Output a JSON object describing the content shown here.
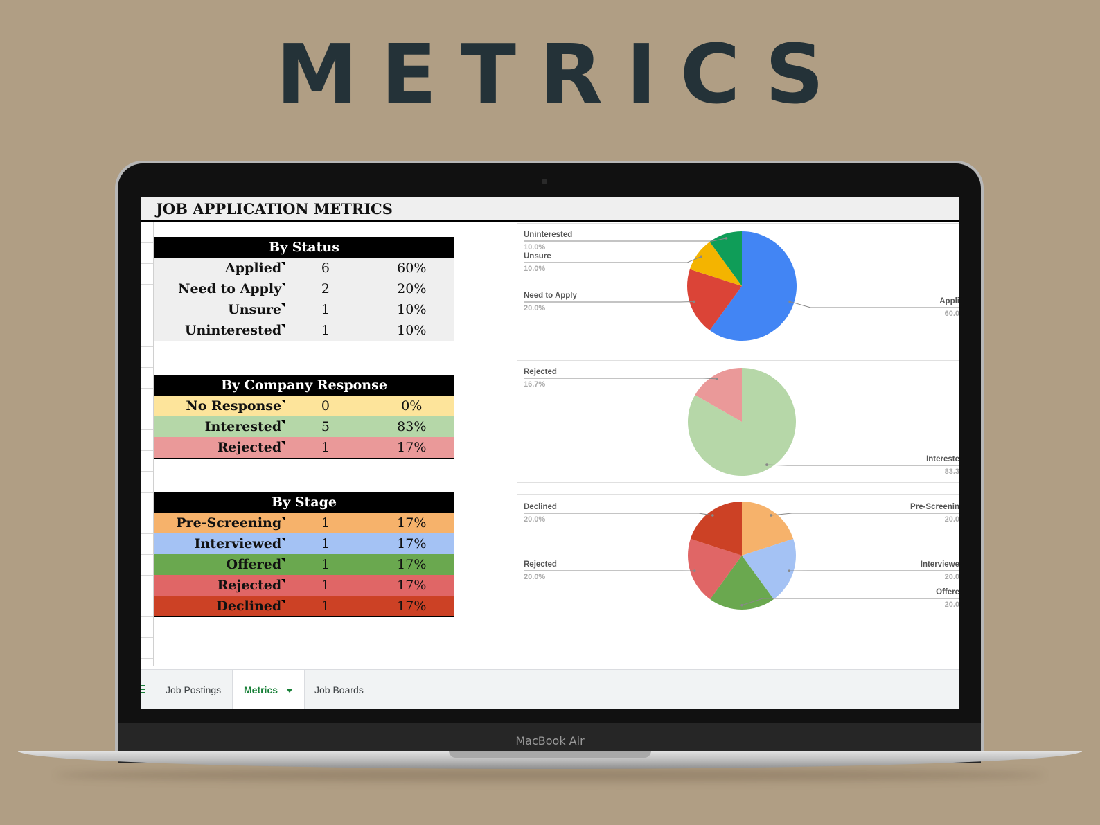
{
  "hero_title": "METRICS",
  "device_label": "MacBook Air",
  "sheet": {
    "title": "JOB APPLICATION METRICS",
    "tables": {
      "status": {
        "title": "By Status",
        "rows": [
          {
            "label": "Applied",
            "count": "6",
            "pct": "60%",
            "bg": "#efefef"
          },
          {
            "label": "Need to Apply",
            "count": "2",
            "pct": "20%",
            "bg": "#efefef"
          },
          {
            "label": "Unsure",
            "count": "1",
            "pct": "10%",
            "bg": "#efefef"
          },
          {
            "label": "Uninterested",
            "count": "1",
            "pct": "10%",
            "bg": "#efefef"
          }
        ]
      },
      "response": {
        "title": "By Company Response",
        "rows": [
          {
            "label": "No Response",
            "count": "0",
            "pct": "0%",
            "bg": "#fde49b"
          },
          {
            "label": "Interested",
            "count": "5",
            "pct": "83%",
            "bg": "#b5d7a8"
          },
          {
            "label": "Rejected",
            "count": "1",
            "pct": "17%",
            "bg": "#ea9999"
          }
        ]
      },
      "stage": {
        "title": "By Stage",
        "rows": [
          {
            "label": "Pre-Screening",
            "count": "1",
            "pct": "17%",
            "bg": "#f6b26b"
          },
          {
            "label": "Interviewed",
            "count": "1",
            "pct": "17%",
            "bg": "#a4c2f4"
          },
          {
            "label": "Offered",
            "count": "1",
            "pct": "17%",
            "bg": "#6aa84f"
          },
          {
            "label": "Rejected",
            "count": "1",
            "pct": "17%",
            "bg": "#e06666"
          },
          {
            "label": "Declined",
            "count": "1",
            "pct": "17%",
            "bg": "#cc4125"
          }
        ]
      }
    },
    "tabs": [
      "Job Postings",
      "Metrics",
      "Job Boards"
    ],
    "active_tab": "Metrics"
  },
  "chart_data": [
    {
      "type": "pie",
      "slices": [
        {
          "label": "Applied",
          "value": 60.0,
          "pct_label": "60.0",
          "color": "#4285f4"
        },
        {
          "label": "Need to Apply",
          "value": 20.0,
          "pct_label": "20.0%",
          "color": "#db4437"
        },
        {
          "label": "Unsure",
          "value": 10.0,
          "pct_label": "10.0%",
          "color": "#f4b400"
        },
        {
          "label": "Uninterested",
          "value": 10.0,
          "pct_label": "10.0%",
          "color": "#0f9d58"
        }
      ],
      "visible_labels": {
        "Applied": "Appli"
      }
    },
    {
      "type": "pie",
      "slices": [
        {
          "label": "Interested",
          "value": 83.3,
          "pct_label": "83.3",
          "color": "#b6d7a8"
        },
        {
          "label": "Rejected",
          "value": 16.7,
          "pct_label": "16.7%",
          "color": "#ea9999"
        }
      ],
      "visible_labels": {
        "Interested": "Intereste"
      }
    },
    {
      "type": "pie",
      "slices": [
        {
          "label": "Pre-Screening",
          "value": 20.0,
          "pct_label": "20.0",
          "color": "#f6b26b"
        },
        {
          "label": "Interviewed",
          "value": 20.0,
          "pct_label": "20.0",
          "color": "#a4c2f4"
        },
        {
          "label": "Offered",
          "value": 20.0,
          "pct_label": "20.0",
          "color": "#6aa84f"
        },
        {
          "label": "Rejected",
          "value": 20.0,
          "pct_label": "20.0%",
          "color": "#e06666"
        },
        {
          "label": "Declined",
          "value": 20.0,
          "pct_label": "20.0%",
          "color": "#cc4125"
        }
      ],
      "visible_labels": {
        "Pre-Screening": "Pre-Screenin",
        "Interviewed": "Interviewe",
        "Offered": "Offere"
      }
    }
  ]
}
